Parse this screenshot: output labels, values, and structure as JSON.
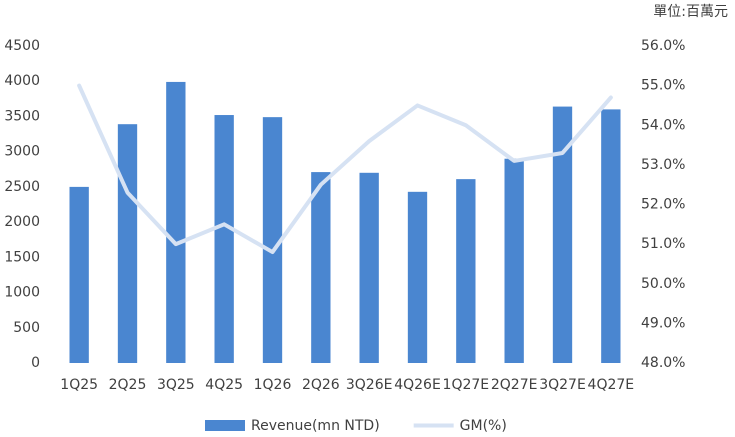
{
  "chart_data": {
    "type": "bar-line",
    "annotation": "單位:百萬元",
    "categories": [
      "1Q25",
      "2Q25",
      "3Q25",
      "4Q25",
      "1Q26",
      "2Q26",
      "3Q26E",
      "4Q26E",
      "1Q27E",
      "2Q27E",
      "3Q27E",
      "4Q27E"
    ],
    "series": [
      {
        "name": "Revenue(mn NTD)",
        "type": "bar",
        "color": "#4a86d0",
        "values": [
          2500,
          3390,
          3990,
          3520,
          3490,
          2710,
          2700,
          2430,
          2610,
          2900,
          3640,
          3600
        ]
      },
      {
        "name": "GM(%)",
        "type": "line",
        "axis": "y2",
        "color": "#d6e2f3",
        "values": [
          55.0,
          52.3,
          51.0,
          51.5,
          50.8,
          52.5,
          53.6,
          54.5,
          54.0,
          53.1,
          53.3,
          54.7
        ]
      }
    ],
    "ylim": [
      0,
      4500
    ],
    "yticks": [
      0,
      500,
      1000,
      1500,
      2000,
      2500,
      3000,
      3500,
      4000,
      4500
    ],
    "y2lim": [
      48,
      56
    ],
    "y2ticks": [
      {
        "value": 48,
        "label": "48.0%"
      },
      {
        "value": 49,
        "label": "49.0%"
      },
      {
        "value": 50,
        "label": "50.0%"
      },
      {
        "value": 51,
        "label": "51.0%"
      },
      {
        "value": 52,
        "label": "52.0%"
      },
      {
        "value": 53,
        "label": "53.0%"
      },
      {
        "value": 54,
        "label": "54.0%"
      },
      {
        "value": 55,
        "label": "55.0%"
      },
      {
        "value": 56,
        "label": "56.0%"
      }
    ],
    "grid": false,
    "legend": "bottom"
  }
}
